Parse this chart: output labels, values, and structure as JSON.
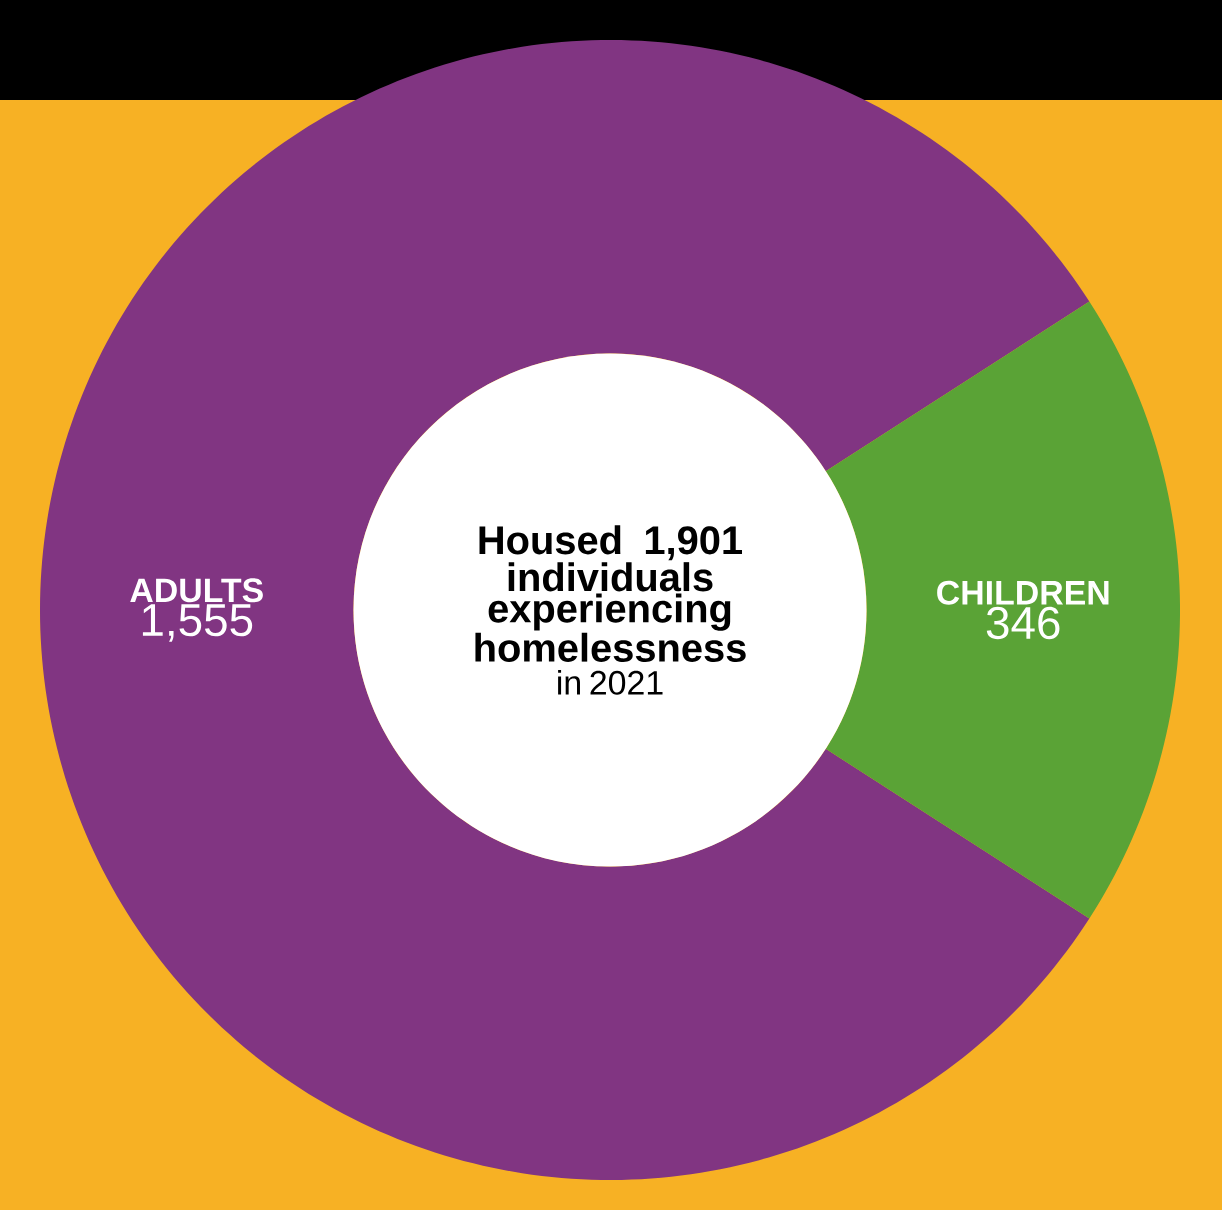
{
  "chart_data": {
    "type": "donut",
    "title": "Housed 1,901 individuals experiencing homelessness",
    "subtitle": "in 2021",
    "categories": [
      "ADULTS",
      "CHILDREN"
    ],
    "values": [
      1555,
      346
    ],
    "value_labels": [
      "1,555",
      "346"
    ],
    "colors": [
      "#813582",
      "#5aa336"
    ]
  }
}
